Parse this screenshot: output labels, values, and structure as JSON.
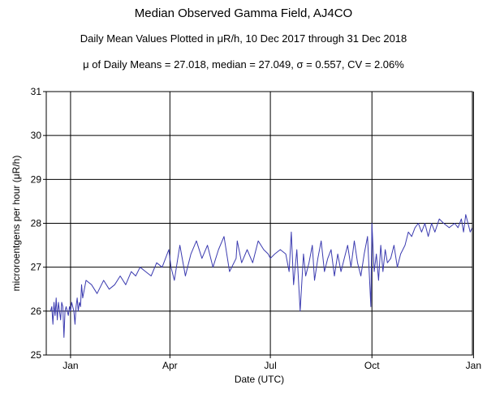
{
  "header": {
    "title": "Median Observed Gamma Field, AJ4CO",
    "subtitle": "Daily Mean Values Plotted in μR/h, 10 Dec 2017 through 31 Dec 2018",
    "stats": "μ of Daily Means = 27.018,   median = 27.049,   σ = 0.557,   CV = 2.06%"
  },
  "chart_data": {
    "type": "line",
    "title": "Median Observed Gamma Field, AJ4CO",
    "subtitle": "Daily Mean Values Plotted in μR/h, 10 Dec 2017 through 31 Dec 2018",
    "xlabel": "Date (UTC)",
    "ylabel": "microroentgens per hour (μR/h)",
    "xlim": [
      "2017-12-10",
      "2018-12-31"
    ],
    "ylim": [
      25,
      31
    ],
    "yticks": [
      25,
      26,
      27,
      28,
      29,
      30,
      31
    ],
    "xticks": [
      {
        "label": "Jan",
        "date": "2018-01-01"
      },
      {
        "label": "Apr",
        "date": "2018-04-01"
      },
      {
        "label": "Jul",
        "date": "2018-07-01"
      },
      {
        "label": "Oct",
        "date": "2018-10-01"
      },
      {
        "label": "Jan",
        "date": "2019-01-01"
      }
    ],
    "grid": true,
    "line_color": "#3b3bb0",
    "series": [
      {
        "x": [
          "2017-12-14",
          "2017-12-15",
          "2017-12-16",
          "2017-12-17",
          "2017-12-18",
          "2017-12-19",
          "2017-12-20",
          "2017-12-21",
          "2017-12-22",
          "2017-12-23",
          "2017-12-24",
          "2017-12-25",
          "2017-12-26",
          "2017-12-27",
          "2017-12-28",
          "2017-12-29",
          "2017-12-30",
          "2017-12-31",
          "2018-01-01",
          "2018-01-02",
          "2018-01-03",
          "2018-01-04",
          "2018-01-05",
          "2018-01-06",
          "2018-01-07",
          "2018-01-08",
          "2018-01-09",
          "2018-01-10",
          "2018-01-11",
          "2018-01-12",
          "2018-01-15",
          "2018-01-20",
          "2018-01-25",
          "2018-01-31",
          "2018-02-05",
          "2018-02-10",
          "2018-02-15",
          "2018-02-20",
          "2018-02-25",
          "2018-03-01",
          "2018-03-05",
          "2018-03-10",
          "2018-03-15",
          "2018-03-20",
          "2018-03-25",
          "2018-03-31",
          "2018-04-02",
          "2018-04-05",
          "2018-04-10",
          "2018-04-15",
          "2018-04-20",
          "2018-04-25",
          "2018-04-30",
          "2018-05-05",
          "2018-05-10",
          "2018-05-15",
          "2018-05-20",
          "2018-05-25",
          "2018-05-31",
          "2018-06-01",
          "2018-06-05",
          "2018-06-10",
          "2018-06-15",
          "2018-06-20",
          "2018-06-25",
          "2018-06-29",
          "2018-07-01",
          "2018-07-05",
          "2018-07-10",
          "2018-07-15",
          "2018-07-18",
          "2018-07-20",
          "2018-07-22",
          "2018-07-25",
          "2018-07-28",
          "2018-07-31",
          "2018-08-02",
          "2018-08-05",
          "2018-08-08",
          "2018-08-10",
          "2018-08-13",
          "2018-08-16",
          "2018-08-19",
          "2018-08-22",
          "2018-08-25",
          "2018-08-28",
          "2018-08-31",
          "2018-09-03",
          "2018-09-06",
          "2018-09-09",
          "2018-09-12",
          "2018-09-15",
          "2018-09-18",
          "2018-09-21",
          "2018-09-24",
          "2018-09-27",
          "2018-09-30",
          "2018-10-01",
          "2018-10-03",
          "2018-10-05",
          "2018-10-07",
          "2018-10-09",
          "2018-10-11",
          "2018-10-13",
          "2018-10-15",
          "2018-10-18",
          "2018-10-21",
          "2018-10-24",
          "2018-10-27",
          "2018-10-31",
          "2018-11-03",
          "2018-11-06",
          "2018-11-09",
          "2018-11-12",
          "2018-11-15",
          "2018-11-18",
          "2018-11-21",
          "2018-11-24",
          "2018-11-27",
          "2018-12-01",
          "2018-12-05",
          "2018-12-10",
          "2018-12-15",
          "2018-12-18",
          "2018-12-21",
          "2018-12-23",
          "2018-12-25",
          "2018-12-27",
          "2018-12-29",
          "2018-12-31"
        ],
        "values": [
          26.0,
          26.1,
          25.7,
          26.2,
          25.9,
          26.3,
          25.8,
          26.2,
          26.0,
          25.8,
          26.2,
          26.1,
          25.4,
          26.0,
          26.1,
          26.0,
          25.9,
          26.1,
          26.0,
          26.2,
          26.1,
          26.0,
          25.7,
          26.1,
          26.3,
          26.0,
          26.2,
          26.1,
          26.6,
          26.3,
          26.7,
          26.6,
          26.4,
          26.7,
          26.5,
          26.6,
          26.8,
          26.6,
          26.9,
          26.8,
          27.0,
          26.9,
          26.8,
          27.1,
          27.0,
          27.4,
          27.0,
          26.7,
          27.5,
          26.8,
          27.3,
          27.6,
          27.2,
          27.5,
          27.0,
          27.4,
          27.7,
          26.9,
          27.2,
          27.6,
          27.1,
          27.4,
          27.1,
          27.6,
          27.4,
          27.3,
          27.2,
          27.3,
          27.4,
          27.3,
          26.9,
          27.8,
          26.6,
          27.4,
          26.0,
          27.3,
          26.8,
          27.1,
          27.5,
          26.7,
          27.2,
          27.6,
          26.9,
          27.2,
          27.4,
          26.8,
          27.3,
          26.9,
          27.2,
          27.5,
          27.0,
          27.6,
          27.1,
          26.8,
          27.3,
          27.7,
          26.1,
          28.0,
          26.9,
          27.3,
          26.7,
          27.5,
          26.9,
          27.4,
          27.1,
          27.2,
          27.5,
          27.0,
          27.3,
          27.5,
          27.8,
          27.7,
          27.9,
          28.0,
          27.8,
          28.0,
          27.7,
          28.0,
          27.8,
          28.1,
          28.0,
          27.9,
          28.0,
          27.9,
          28.1,
          27.8,
          28.2,
          28.0,
          27.8,
          27.9
        ]
      }
    ]
  }
}
